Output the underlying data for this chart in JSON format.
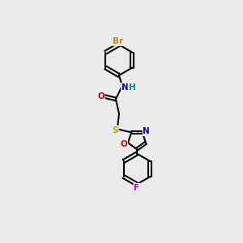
{
  "background_color": "#ebebeb",
  "bond_color": "#000000",
  "atom_colors": {
    "Br": "#b8860b",
    "N": "#0000cc",
    "H": "#008888",
    "O": "#cc0000",
    "S": "#aaaa00",
    "F": "#cc00cc",
    "C": "#000000"
  },
  "figsize": [
    3.0,
    3.0
  ],
  "dpi": 100,
  "xlim": [
    0,
    10
  ],
  "ylim": [
    0,
    10
  ]
}
